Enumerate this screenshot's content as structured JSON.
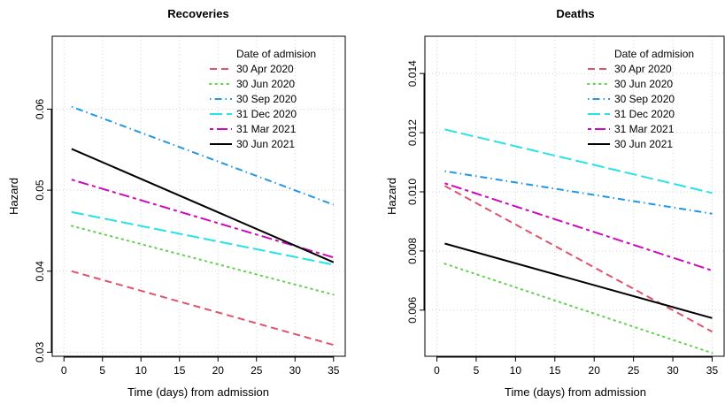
{
  "chart_data": [
    {
      "type": "line",
      "title": "Recoveries",
      "xlabel": "Time (days) from admission",
      "ylabel": "Hazard",
      "xlim": [
        0,
        35
      ],
      "ylim": [
        0.0295,
        0.069
      ],
      "xticks": [
        0,
        5,
        10,
        15,
        20,
        25,
        30,
        35
      ],
      "yticks": [
        0.03,
        0.04,
        0.05,
        0.06
      ],
      "ytick_labels": [
        "0.03",
        "0.04",
        "0.05",
        "0.06"
      ],
      "grid": true,
      "legend": {
        "title": "Date of admision",
        "position": "top-right"
      },
      "series": [
        {
          "name": "30 Apr 2020",
          "color": "#DF536B",
          "dash": "dashed",
          "x": [
            1,
            35
          ],
          "y": [
            0.04,
            0.0309
          ]
        },
        {
          "name": "30 Jun 2020",
          "color": "#61D04F",
          "dash": "dotted",
          "x": [
            1,
            35
          ],
          "y": [
            0.0456,
            0.0371
          ]
        },
        {
          "name": "30 Sep 2020",
          "color": "#2297E6",
          "dash": "dotdash",
          "x": [
            1,
            35
          ],
          "y": [
            0.0603,
            0.0482
          ]
        },
        {
          "name": "31 Dec 2020",
          "color": "#28E2E5",
          "dash": "longdash",
          "x": [
            1,
            35
          ],
          "y": [
            0.0473,
            0.0408
          ]
        },
        {
          "name": "31 Mar 2021",
          "color": "#CD0BBC",
          "dash": "twodash",
          "x": [
            1,
            35
          ],
          "y": [
            0.0513,
            0.0417
          ]
        },
        {
          "name": "30 Jun 2021",
          "color": "#000000",
          "dash": "solid",
          "x": [
            1,
            35
          ],
          "y": [
            0.0551,
            0.0411
          ]
        }
      ]
    },
    {
      "type": "line",
      "title": "Deaths",
      "xlabel": "Time (days) from admission",
      "ylabel": "Hazard",
      "xlim": [
        0,
        35
      ],
      "ylim": [
        0.00444,
        0.01526
      ],
      "xticks": [
        0,
        5,
        10,
        15,
        20,
        25,
        30,
        35
      ],
      "yticks": [
        0.006,
        0.008,
        0.01,
        0.012,
        0.014
      ],
      "ytick_labels": [
        "0.006",
        "0.008",
        "0.010",
        "0.012",
        "0.014"
      ],
      "grid": true,
      "legend": {
        "title": "Date of admision",
        "position": "top-right"
      },
      "series": [
        {
          "name": "30 Apr 2020",
          "color": "#DF536B",
          "dash": "dashed",
          "x": [
            1,
            35
          ],
          "y": [
            0.0102,
            0.00527
          ]
        },
        {
          "name": "30 Jun 2020",
          "color": "#61D04F",
          "dash": "dotted",
          "x": [
            1,
            35
          ],
          "y": [
            0.00757,
            0.00455
          ]
        },
        {
          "name": "30 Sep 2020",
          "color": "#2297E6",
          "dash": "dotdash",
          "x": [
            1,
            35
          ],
          "y": [
            0.0107,
            0.00926
          ]
        },
        {
          "name": "31 Dec 2020",
          "color": "#28E2E5",
          "dash": "longdash",
          "x": [
            1,
            35
          ],
          "y": [
            0.01211,
            0.00996
          ]
        },
        {
          "name": "31 Mar 2021",
          "color": "#CD0BBC",
          "dash": "twodash",
          "x": [
            1,
            35
          ],
          "y": [
            0.01029,
            0.00734
          ]
        },
        {
          "name": "30 Jun 2021",
          "color": "#000000",
          "dash": "solid",
          "x": [
            1,
            35
          ],
          "y": [
            0.00825,
            0.00573
          ]
        }
      ]
    }
  ]
}
